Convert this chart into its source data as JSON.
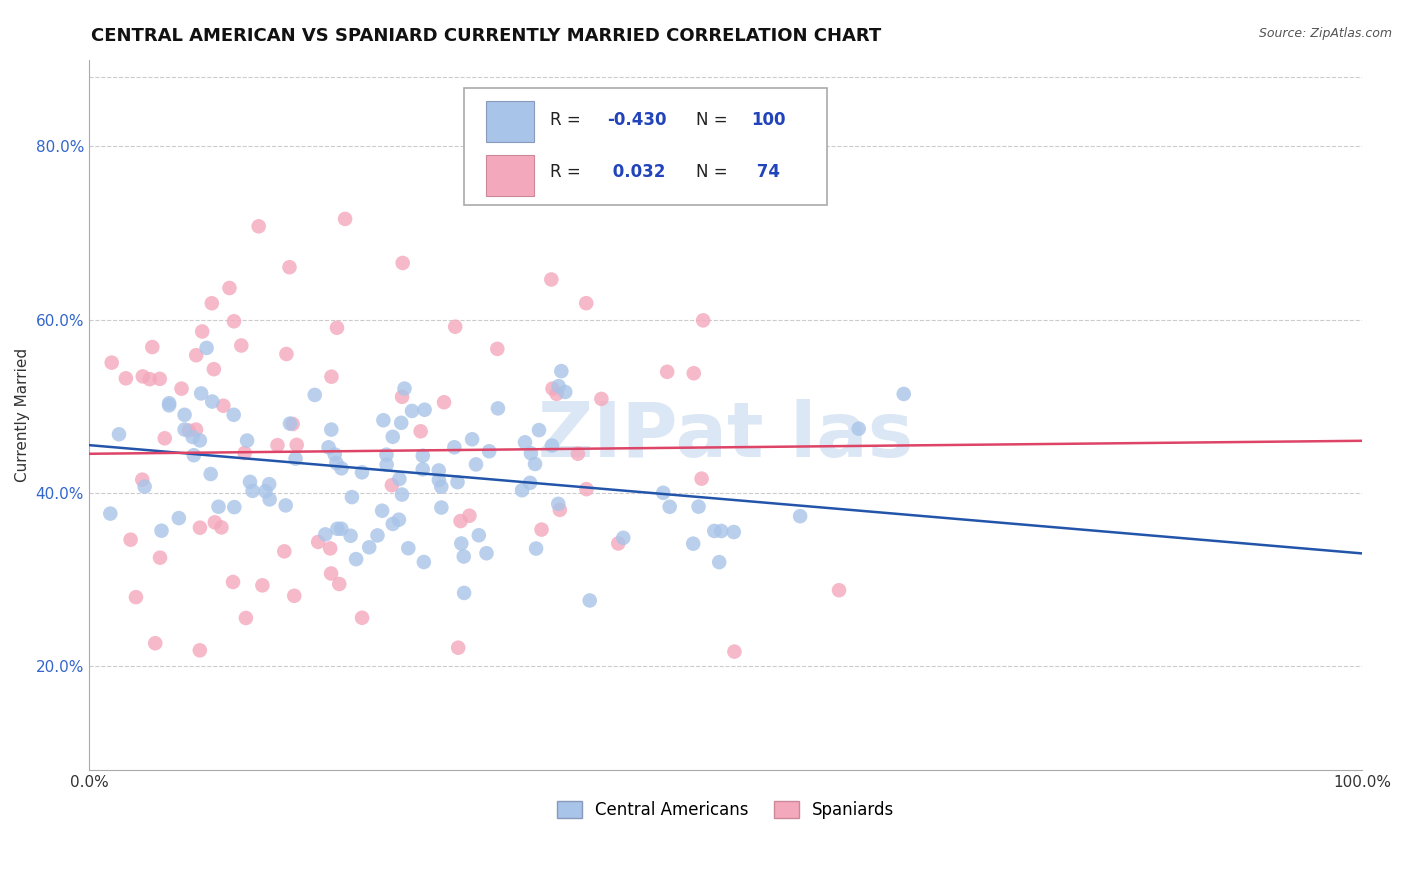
{
  "title": "CENTRAL AMERICAN VS SPANIARD CURRENTLY MARRIED CORRELATION CHART",
  "source": "Source: ZipAtlas.com",
  "ylabel": "Currently Married",
  "blue_R": -0.43,
  "blue_N": 100,
  "pink_R": 0.032,
  "pink_N": 74,
  "blue_color": "#a8c4e8",
  "pink_color": "#f4a8bc",
  "blue_line_color": "#2255aa",
  "pink_line_color": "#dd4466",
  "legend_label_blue": "Central Americans",
  "legend_label_pink": "Spaniards",
  "watermark": "ZipAtlas",
  "background_color": "#ffffff",
  "grid_color": "#cccccc",
  "title_fontsize": 13,
  "axis_fontsize": 11,
  "tick_fontsize": 11,
  "xlim": [
    0.0,
    1.0
  ],
  "ylim": [
    0.08,
    0.9
  ],
  "yticks": [
    0.2,
    0.4,
    0.6,
    0.8
  ],
  "ytick_labels": [
    "20.0%",
    "40.0%",
    "60.0%",
    "80.0%"
  ],
  "xticks": [
    0.0,
    1.0
  ],
  "xtick_labels": [
    "0.0%",
    "100.0%"
  ],
  "blue_line_y0": 0.455,
  "blue_line_y1": 0.33,
  "pink_line_y0": 0.445,
  "pink_line_y1": 0.46
}
